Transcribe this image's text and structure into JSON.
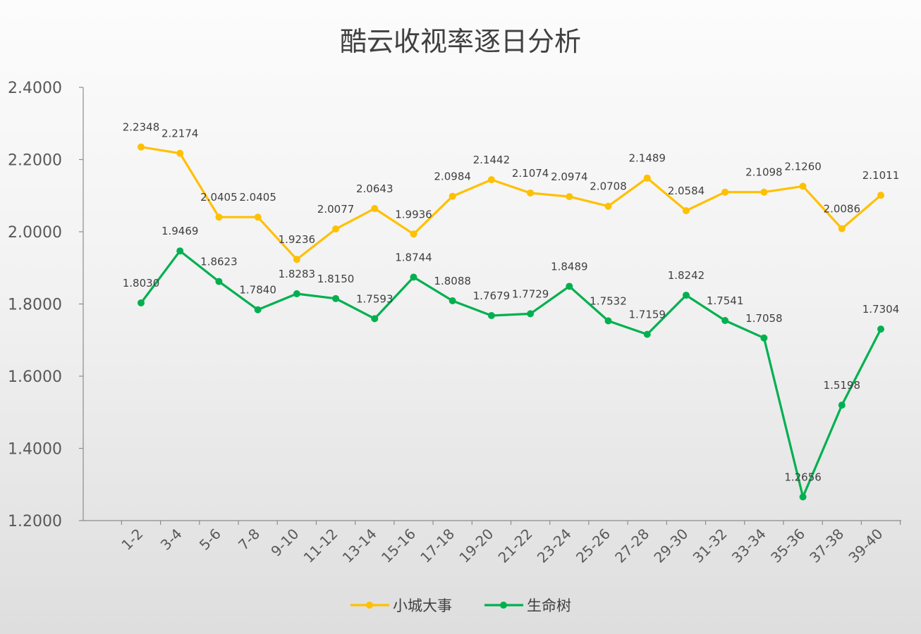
{
  "chart_data": {
    "type": "line",
    "title": "酷云收视率逐日分析",
    "categories": [
      "1-2",
      "3-4",
      "5-6",
      "7-8",
      "9-10",
      "11-12",
      "13-14",
      "15-16",
      "17-18",
      "19-20",
      "21-22",
      "23-24",
      "25-26",
      "27-28",
      "29-30",
      "31-32",
      "33-34",
      "35-36",
      "37-38",
      "39-40"
    ],
    "ylim": [
      1.2,
      2.4
    ],
    "yticks": [
      "1.2000",
      "1.4000",
      "1.6000",
      "1.8000",
      "2.0000",
      "2.2000",
      "2.4000"
    ],
    "grid": false,
    "legend_position": "bottom",
    "series": [
      {
        "name": "小城大事",
        "color": "#FFC000",
        "values": [
          2.2348,
          2.2174,
          2.0405,
          2.0405,
          1.9236,
          2.0077,
          2.0643,
          1.9936,
          2.0984,
          2.1442,
          2.1074,
          2.0974,
          2.0708,
          2.1489,
          2.0584,
          2.1098,
          2.1098,
          2.126,
          2.0086,
          2.1011
        ],
        "labels": [
          "2.2348",
          "2.2174",
          "2.0405",
          "2.0405",
          "1.9236",
          "2.0077",
          "2.0643",
          "1.9936",
          "2.0984",
          "2.1442",
          "2.1074",
          "2.0974",
          "2.0708",
          "2.1489",
          "2.0584",
          "",
          "2.1098",
          "2.1260",
          "2.0086",
          "2.1011"
        ]
      },
      {
        "name": "生命树",
        "color": "#00B050",
        "values": [
          1.803,
          1.9469,
          1.8623,
          1.784,
          1.8283,
          1.815,
          1.7593,
          1.8744,
          1.8088,
          1.7679,
          1.7729,
          1.8489,
          1.7532,
          1.7159,
          1.8242,
          1.7541,
          1.7058,
          1.2656,
          1.5198,
          1.7304
        ],
        "labels": [
          "1.8030",
          "1.9469",
          "1.8623",
          "1.7840",
          "1.8283",
          "1.8150",
          "1.7593",
          "1.8744",
          "1.8088",
          "1.7679",
          "1.7729",
          "1.8489",
          "1.7532",
          "1.7159",
          "1.8242",
          "1.7541",
          "1.7058",
          "1.2656",
          "1.5198",
          "1.7304"
        ]
      }
    ]
  }
}
